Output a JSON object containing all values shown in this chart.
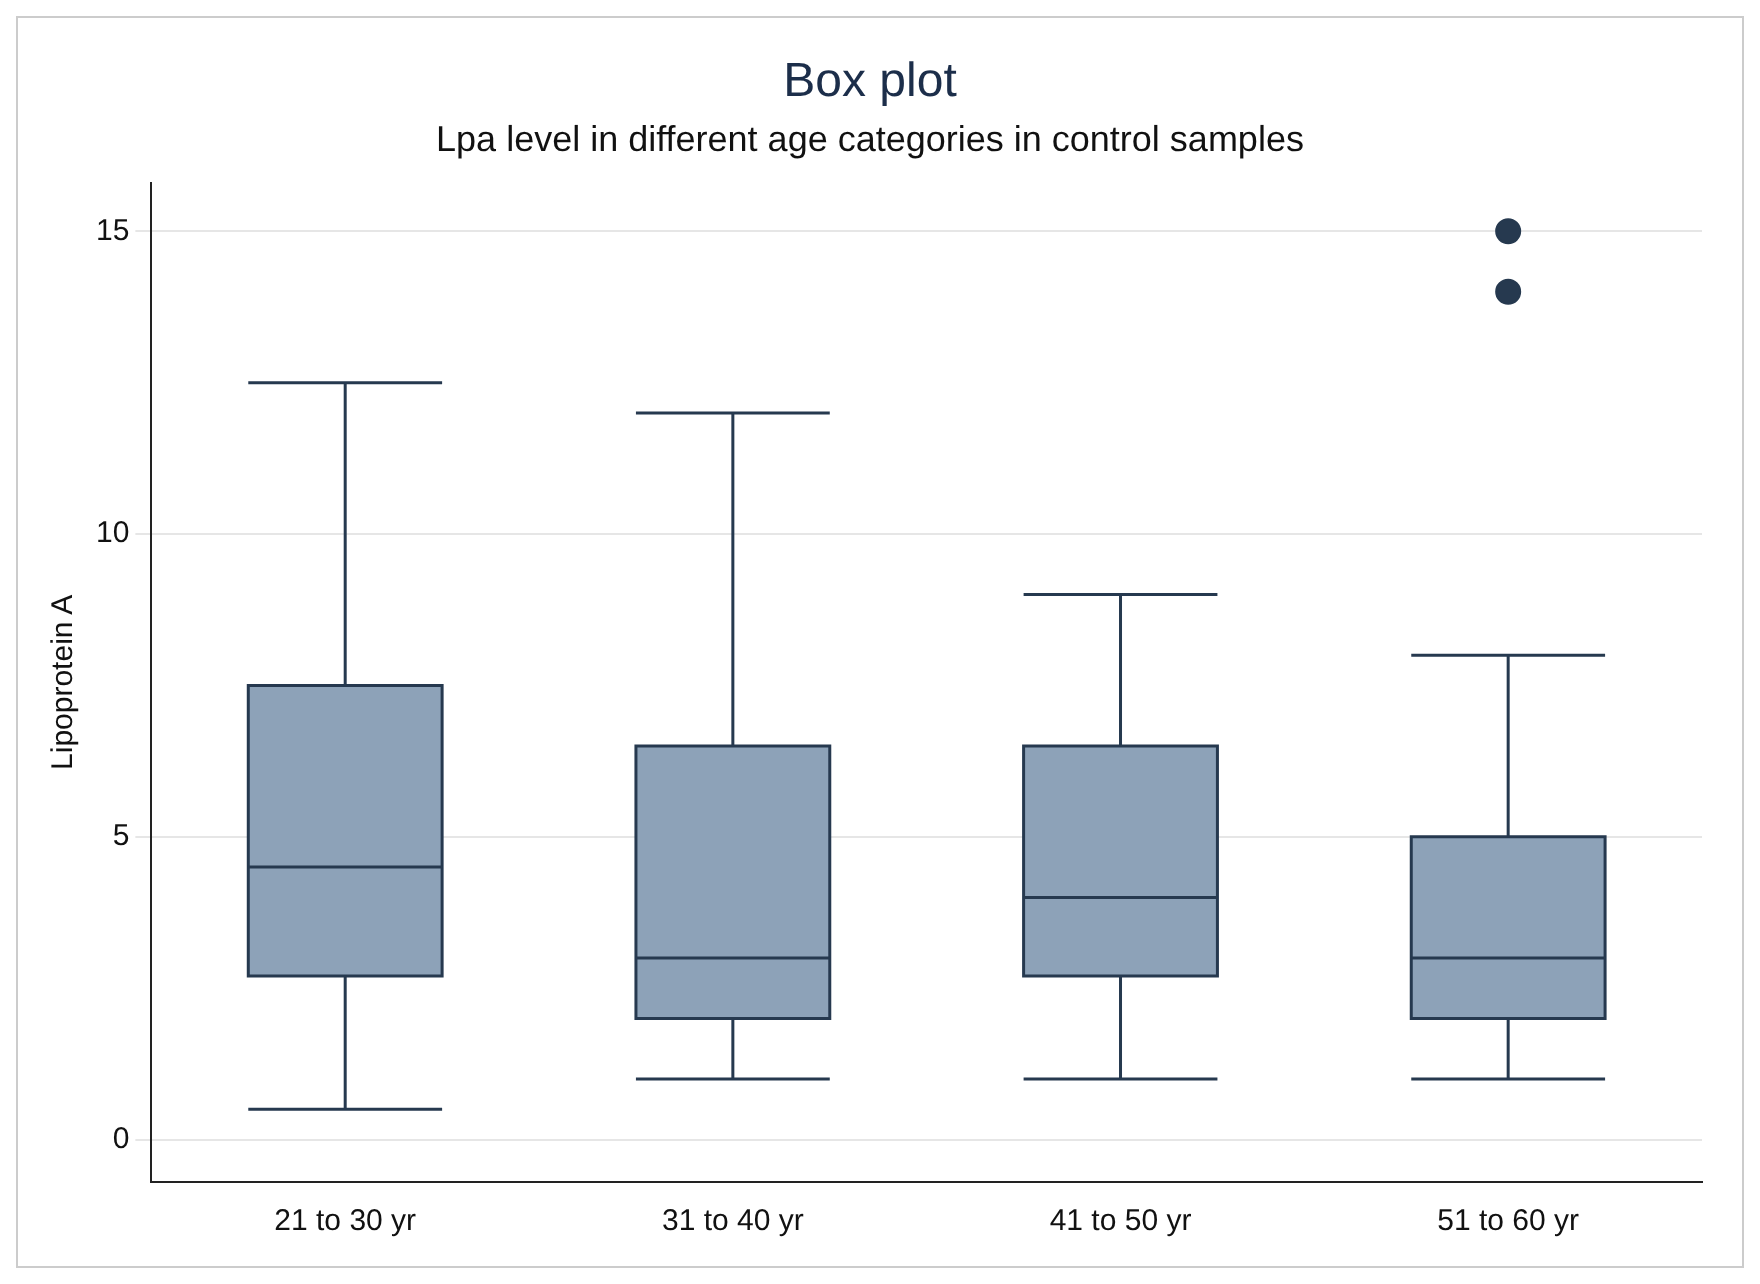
{
  "chart_data": {
    "type": "box",
    "title": "Box plot",
    "subtitle": "Lpa level in different age categories in control samples",
    "ylabel": "Lipoprotein A",
    "categories": [
      "21 to 30 yr",
      "31 to 40 yr",
      "41 to 50 yr",
      "51 to 60 yr"
    ],
    "boxes": [
      {
        "low": 0.5,
        "q1": 2.7,
        "median": 4.5,
        "q3": 7.5,
        "high": 12.5
      },
      {
        "low": 1,
        "q1": 2,
        "median": 3,
        "q3": 6.5,
        "high": 12
      },
      {
        "low": 1,
        "q1": 2.7,
        "median": 4,
        "q3": 6.5,
        "high": 9
      },
      {
        "low": 1,
        "q1": 2,
        "median": 3,
        "q3": 5,
        "high": 8,
        "outliers": [
          14,
          15
        ]
      }
    ],
    "color": "#8da2b8",
    "ylim": [
      -0.7,
      15.8
    ],
    "yticks": [
      0,
      5,
      10,
      15
    ],
    "grid": "y"
  }
}
